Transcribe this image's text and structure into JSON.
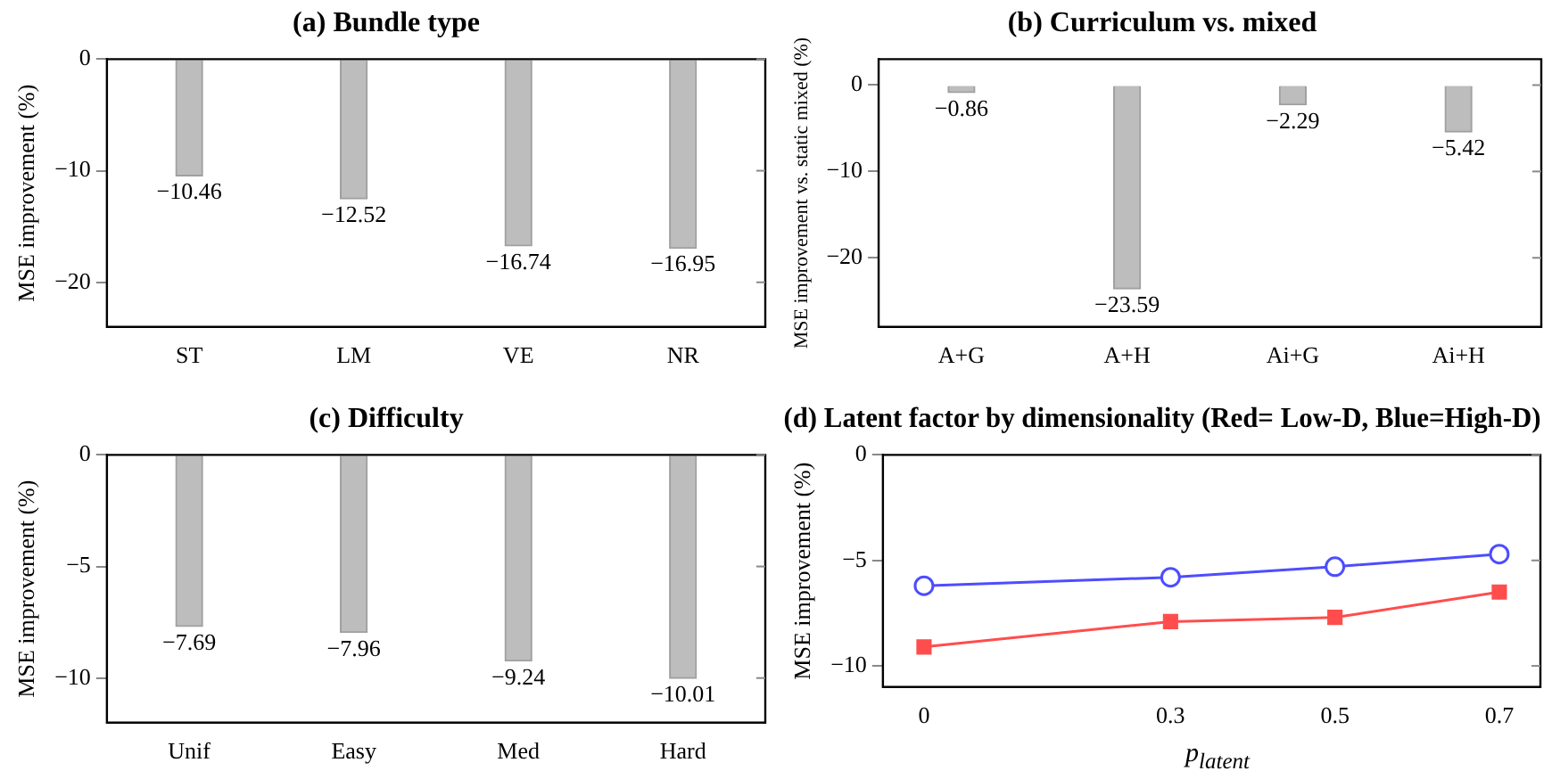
{
  "chart_data": [
    {
      "type": "bar",
      "title": "(a) Bundle type",
      "ylabel": "MSE improvement (%)",
      "categories": [
        "ST",
        "LM",
        "VE",
        "NR"
      ],
      "values": [
        -10.46,
        -12.52,
        -16.74,
        -16.95
      ],
      "color": "#bdbdbd",
      "ylim": [
        -24,
        0
      ],
      "yticks": [
        -20,
        -10,
        0
      ],
      "data_labels": true
    },
    {
      "type": "bar",
      "title": "(b) Curriculum vs. mixed",
      "ylabel": "MSE improvement vs. static mixed (%)",
      "categories": [
        "A+G",
        "A+H",
        "Ai+G",
        "Ai+H"
      ],
      "values": [
        -0.86,
        -23.59,
        -2.29,
        -5.42
      ],
      "color": "#bdbdbd",
      "ylim": [
        -28,
        3
      ],
      "yticks": [
        -20,
        -10,
        0
      ],
      "data_labels": true
    },
    {
      "type": "bar",
      "title": "(c) Difficulty",
      "ylabel": "MSE improvement (%)",
      "categories": [
        "Unif",
        "Easy",
        "Med",
        "Hard"
      ],
      "values": [
        -7.69,
        -7.96,
        -9.24,
        -10.01
      ],
      "color": "#bdbdbd",
      "ylim": [
        -12,
        0
      ],
      "yticks": [
        -10,
        -5,
        0
      ],
      "data_labels": true
    },
    {
      "type": "line",
      "title": "(d) Latent factor by dimensionality (Red= Low-D, Blue=High-D)",
      "ylabel": "MSE improvement (%)",
      "xlabel": "p$_{latent}$",
      "x": [
        0,
        0.3,
        0.5,
        0.7
      ],
      "xlim": [
        -0.05,
        0.75
      ],
      "xticks": [
        0,
        0.3,
        0.5,
        0.7
      ],
      "ylim": [
        -11,
        0
      ],
      "yticks": [
        -10,
        -5,
        0
      ],
      "series": [
        {
          "color": "#4d4dff",
          "marker": "circle",
          "values": [
            -6.2,
            -5.8,
            -5.3,
            -4.7
          ]
        },
        {
          "color": "#ff4d4d",
          "marker": "square",
          "values": [
            -9.1,
            -7.9,
            -7.7,
            -6.5
          ]
        }
      ]
    }
  ]
}
